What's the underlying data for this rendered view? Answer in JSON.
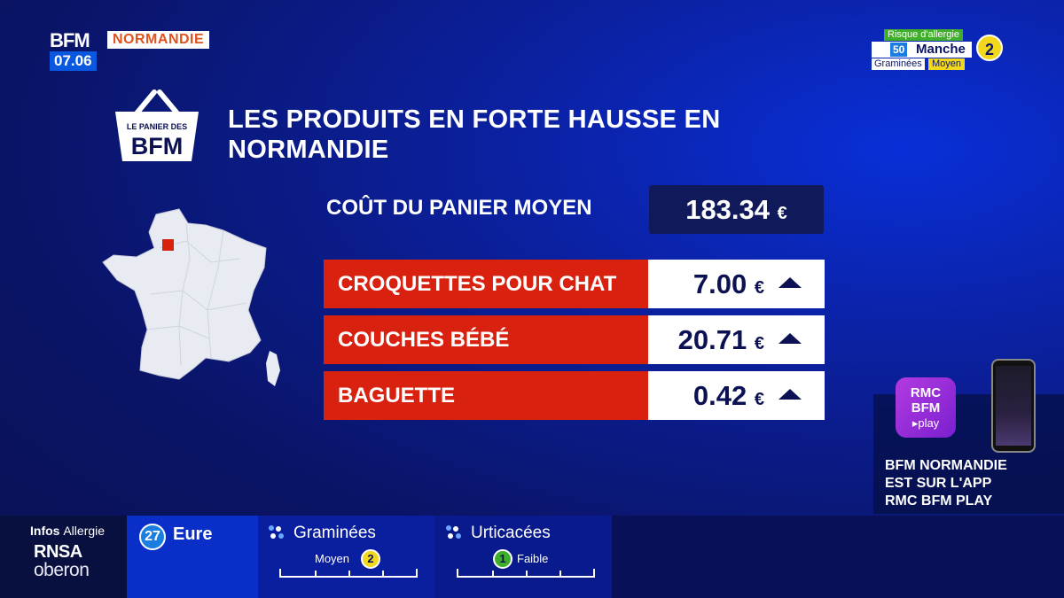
{
  "channel": {
    "logo": "BFM",
    "region": "NORMANDIE",
    "time": "07.06"
  },
  "allergy_widget": {
    "header": "Risque d'allergie",
    "dept_number": "50",
    "dept_name": "Manche",
    "pollen": "Graminées",
    "level_label": "Moyen",
    "level": "2",
    "colors": {
      "header": "#3fae2a",
      "level": "#f2d81d"
    }
  },
  "segment": {
    "logo_lines": [
      "LE PANIER DES",
      "BFM"
    ],
    "title_line1": "LES PRODUITS EN FORTE HAUSSE EN",
    "title_line2": "NORMANDIE",
    "avg_label": "COÛT DU PANIER MOYEN",
    "avg_value": "183.34",
    "currency": "€",
    "products": [
      {
        "name": "CROQUETTES POUR CHAT",
        "price": "7.00",
        "trend": "up"
      },
      {
        "name": "COUCHES BÉBÉ",
        "price": "20.71",
        "trend": "up"
      },
      {
        "name": "BAGUETTE",
        "price": "0.42",
        "trend": "up"
      }
    ],
    "colors": {
      "row_red": "#d9210f",
      "highlight_region": "#d9210f"
    }
  },
  "promo": {
    "logo_lines": [
      "RMC",
      "BFM",
      "▸play"
    ],
    "text_line1": "BFM NORMANDIE",
    "text_line2": "EST SUR L'APP",
    "text_line3": "RMC BFM PLAY"
  },
  "bottom_bar": {
    "infos_bold": "Infos",
    "infos_light": "Allergie",
    "sponsor1": "RNSA",
    "sponsor2": "oberon",
    "dept_number": "27",
    "dept_name": "Eure",
    "pollens": [
      {
        "name": "Graminées",
        "level_label": "Moyen",
        "level": "2",
        "color": "#f2d81d"
      },
      {
        "name": "Urticacées",
        "level_label": "Faible",
        "level": "1",
        "color": "#3fae2a"
      }
    ]
  }
}
